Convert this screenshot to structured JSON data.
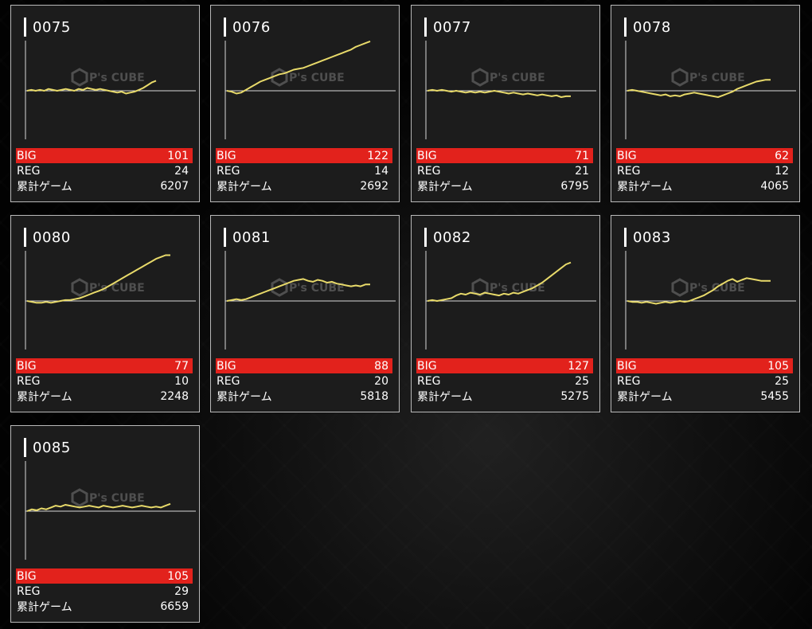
{
  "labels": {
    "big": "BIG",
    "reg": "REG",
    "total": "累計ゲーム"
  },
  "watermark": {
    "brand": "P's CUBE"
  },
  "accent": "#e2221c",
  "line_color": "#e8da6a",
  "machines": [
    {
      "id": "0075",
      "big": "101",
      "reg": "24",
      "total": "6207",
      "chart_data": {
        "type": "line",
        "y": [
          0,
          1,
          0,
          1,
          0,
          2,
          1,
          0,
          1,
          2,
          1,
          0,
          2,
          1,
          3,
          2,
          1,
          2,
          1,
          0,
          -1,
          -2,
          -1,
          -3,
          -2,
          -1,
          1,
          3,
          6,
          9,
          11
        ]
      }
    },
    {
      "id": "0076",
      "big": "122",
      "reg": "14",
      "total": "2692",
      "chart_data": {
        "type": "line",
        "y": [
          0,
          -1,
          -3,
          -2,
          1,
          4,
          7,
          10,
          12,
          14,
          16,
          18,
          19,
          21,
          23,
          24,
          25,
          27,
          29,
          31,
          33,
          35,
          37,
          39,
          41,
          43,
          45,
          48,
          50,
          52,
          54
        ]
      }
    },
    {
      "id": "0077",
      "big": "71",
      "reg": "21",
      "total": "6795",
      "chart_data": {
        "type": "line",
        "y": [
          0,
          1,
          0,
          1,
          0,
          -1,
          0,
          -1,
          -2,
          -1,
          -2,
          -1,
          -2,
          -1,
          0,
          -1,
          -2,
          -3,
          -2,
          -3,
          -4,
          -3,
          -4,
          -5,
          -4,
          -5,
          -6,
          -5,
          -7,
          -6,
          -6
        ]
      }
    },
    {
      "id": "0078",
      "big": "62",
      "reg": "12",
      "total": "4065",
      "chart_data": {
        "type": "line",
        "y": [
          0,
          1,
          0,
          -1,
          -2,
          -3,
          -4,
          -5,
          -4,
          -6,
          -5,
          -6,
          -4,
          -3,
          -2,
          -3,
          -4,
          -5,
          -6,
          -7,
          -5,
          -3,
          -1,
          2,
          4,
          6,
          8,
          10,
          11,
          12,
          12
        ]
      }
    },
    {
      "id": "0080",
      "big": "77",
      "reg": "10",
      "total": "2248",
      "chart_data": {
        "type": "line",
        "y": [
          0,
          -1,
          -2,
          -2,
          -1,
          -2,
          -1,
          0,
          1,
          1,
          2,
          3,
          5,
          7,
          9,
          11,
          13,
          16,
          19,
          22,
          25,
          28,
          31,
          34,
          37,
          40,
          43,
          46,
          48,
          50,
          50
        ]
      }
    },
    {
      "id": "0081",
      "big": "88",
      "reg": "20",
      "total": "5818",
      "chart_data": {
        "type": "line",
        "y": [
          0,
          1,
          2,
          1,
          2,
          4,
          6,
          8,
          10,
          12,
          14,
          16,
          18,
          20,
          22,
          23,
          24,
          22,
          21,
          23,
          22,
          20,
          21,
          19,
          18,
          17,
          16,
          17,
          16,
          18,
          18
        ]
      }
    },
    {
      "id": "0082",
      "big": "127",
      "reg": "25",
      "total": "5275",
      "chart_data": {
        "type": "line",
        "y": [
          0,
          1,
          0,
          1,
          2,
          3,
          6,
          8,
          7,
          9,
          8,
          7,
          9,
          8,
          7,
          6,
          8,
          7,
          9,
          8,
          10,
          12,
          14,
          17,
          20,
          24,
          28,
          32,
          36,
          40,
          42
        ]
      }
    },
    {
      "id": "0083",
      "big": "105",
      "reg": "25",
      "total": "5455",
      "chart_data": {
        "type": "line",
        "y": [
          0,
          -1,
          -1,
          -2,
          -1,
          -2,
          -3,
          -2,
          -1,
          -2,
          -1,
          0,
          -1,
          0,
          2,
          4,
          6,
          9,
          12,
          16,
          19,
          22,
          24,
          21,
          23,
          25,
          24,
          23,
          22,
          22,
          22
        ]
      }
    },
    {
      "id": "0085",
      "big": "105",
      "reg": "29",
      "total": "6659",
      "chart_data": {
        "type": "line",
        "y": [
          0,
          2,
          1,
          3,
          2,
          4,
          6,
          5,
          7,
          6,
          5,
          4,
          5,
          6,
          5,
          4,
          6,
          5,
          4,
          5,
          6,
          5,
          4,
          5,
          6,
          5,
          4,
          5,
          4,
          6,
          8
        ]
      }
    }
  ]
}
